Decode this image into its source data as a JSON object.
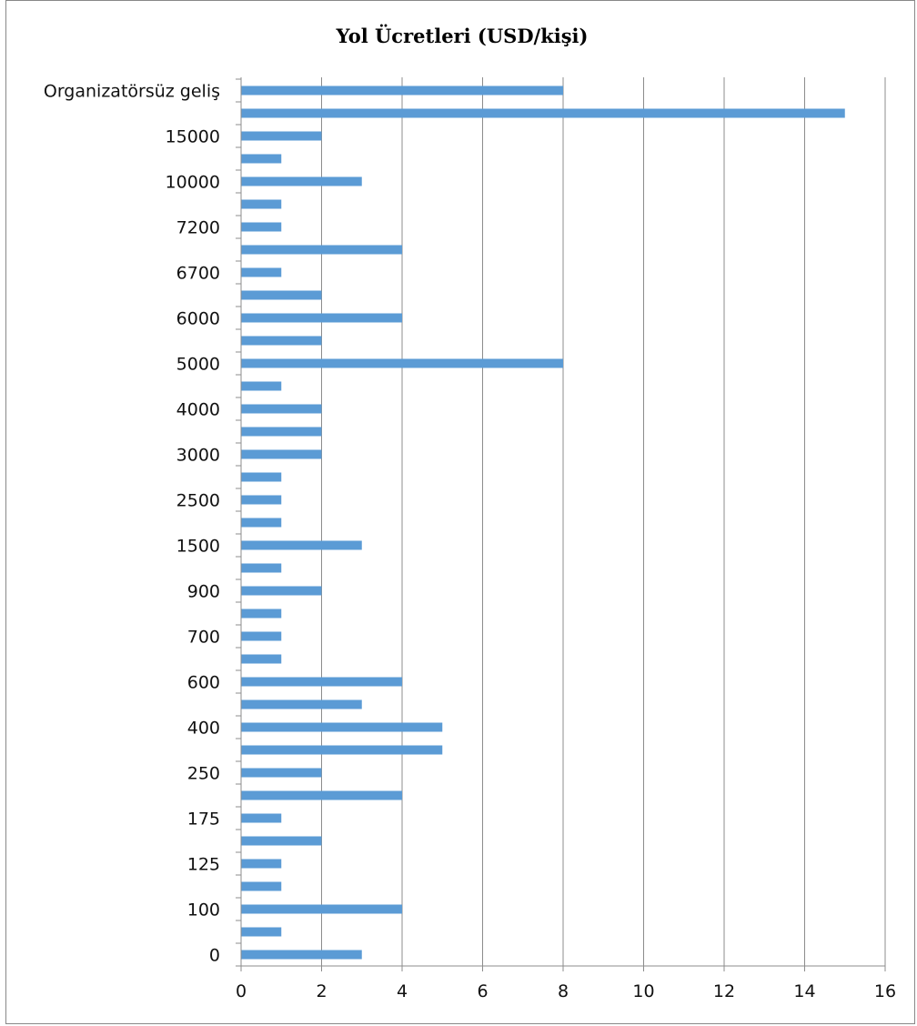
{
  "chart_data": {
    "type": "bar",
    "orientation": "horizontal",
    "title": "Yol Ücretleri (USD/kişi)",
    "xlabel": "",
    "ylabel": "",
    "xlim": [
      0,
      16
    ],
    "xticks": [
      0,
      2,
      4,
      6,
      8,
      10,
      12,
      14,
      16
    ],
    "grid": "vertical",
    "bar_color": "#5b9bd5",
    "categories": [
      "0",
      "",
      "100",
      "",
      "125",
      "",
      "175",
      "",
      "250",
      "",
      "400",
      "",
      "600",
      "",
      "700",
      "",
      "900",
      "",
      "1500",
      "",
      "2500",
      "",
      "3000",
      "",
      "4000",
      "",
      "5000",
      "",
      "6000",
      "",
      "6700",
      "",
      "7200",
      "",
      "10000",
      "",
      "15000",
      "",
      "Organizatörsüz geliş"
    ],
    "values": [
      3,
      1,
      4,
      1,
      1,
      2,
      1,
      4,
      2,
      5,
      5,
      3,
      4,
      1,
      1,
      1,
      2,
      1,
      3,
      1,
      1,
      1,
      2,
      2,
      2,
      1,
      8,
      2,
      4,
      2,
      1,
      4,
      1,
      1,
      3,
      1,
      2,
      15,
      8
    ]
  }
}
